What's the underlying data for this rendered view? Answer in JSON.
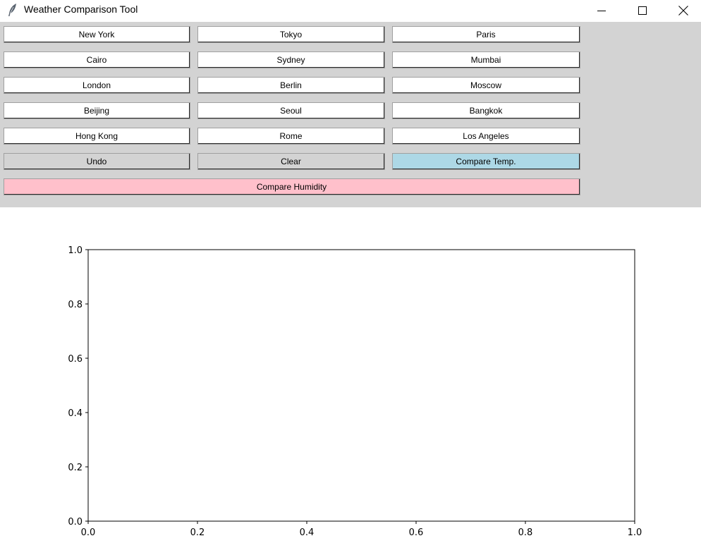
{
  "window": {
    "title": "Weather Comparison Tool",
    "icon": "feather-icon"
  },
  "cities": [
    [
      "New York",
      "Tokyo",
      "Paris"
    ],
    [
      "Cairo",
      "Sydney",
      "Mumbai"
    ],
    [
      "London",
      "Berlin",
      "Moscow"
    ],
    [
      "Beijing",
      "Seoul",
      "Bangkok"
    ],
    [
      "Hong Kong",
      "Rome",
      "Los Angeles"
    ]
  ],
  "actions": {
    "undo": "Undo",
    "clear": "Clear",
    "compare_temp": "Compare Temp.",
    "compare_humidity": "Compare Humidity"
  },
  "colors": {
    "panel": "#d3d3d3",
    "compare_temp_bg": "#add8e6",
    "compare_humidity_bg": "#ffc0cb"
  },
  "chart_data": {
    "type": "line",
    "series": [],
    "xlim": [
      0.0,
      1.0
    ],
    "ylim": [
      0.0,
      1.0
    ],
    "xticks": [
      "0.0",
      "0.2",
      "0.4",
      "0.6",
      "0.8",
      "1.0"
    ],
    "yticks": [
      "0.0",
      "0.2",
      "0.4",
      "0.6",
      "0.8",
      "1.0"
    ],
    "title": "",
    "xlabel": "",
    "ylabel": "",
    "grid": false
  }
}
